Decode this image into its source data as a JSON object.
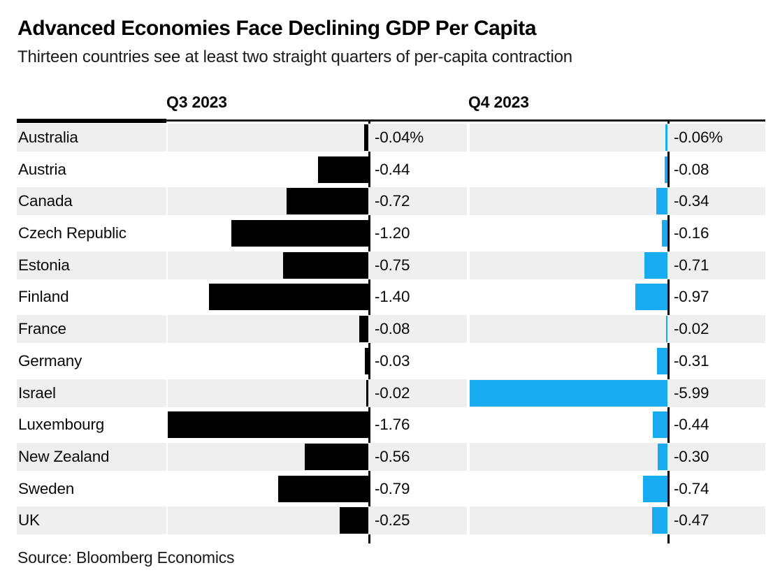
{
  "title": "Advanced Economies Face Declining GDP Per Capita",
  "subtitle": "Thirteen countries see at least two straight quarters of per-capita contraction",
  "source": "Source: Bloomberg Economics",
  "colors": {
    "q3_bar": "#000000",
    "q4_bar": "#18abf0",
    "row_stripe": "#efefef",
    "rule": "#000000",
    "zero_axis": "#000000",
    "text": "#0a0a0a"
  },
  "chart_data": {
    "type": "bar",
    "orientation": "horizontal",
    "title": "Advanced Economies Face Declining GDP Per Capita",
    "subtitle": "Thirteen countries see at least two straight quarters of per-capita contraction",
    "grid": false,
    "legend_position": "column-headers",
    "categories": [
      "Australia",
      "Austria",
      "Canada",
      "Czech Republic",
      "Estonia",
      "Finland",
      "France",
      "Germany",
      "Israel",
      "Luxembourg",
      "New Zealand",
      "Sweden",
      "UK"
    ],
    "series": [
      {
        "name": "Q3 2023",
        "color": "#000000",
        "values": [
          -0.04,
          -0.44,
          -0.72,
          -1.2,
          -0.75,
          -1.4,
          -0.08,
          -0.03,
          -0.02,
          -1.76,
          -0.56,
          -0.79,
          -0.25
        ],
        "labels": [
          "-0.04%",
          "-0.44",
          "-0.72",
          "-1.20",
          "-0.75",
          "-1.40",
          "-0.08",
          "-0.03",
          "-0.02",
          "-1.76",
          "-0.56",
          "-0.79",
          "-0.25"
        ],
        "xlim": [
          -1.76,
          0
        ]
      },
      {
        "name": "Q4 2023",
        "color": "#18abf0",
        "values": [
          -0.06,
          -0.08,
          -0.34,
          -0.16,
          -0.71,
          -0.97,
          -0.02,
          -0.31,
          -5.99,
          -0.44,
          -0.3,
          -0.74,
          -0.47
        ],
        "labels": [
          "-0.06%",
          "-0.08",
          "-0.34",
          "-0.16",
          "-0.71",
          "-0.97",
          "-0.02",
          "-0.31",
          "-5.99",
          "-0.44",
          "-0.30",
          "-0.74",
          "-0.47"
        ],
        "xlim": [
          -5.99,
          0
        ]
      }
    ]
  }
}
